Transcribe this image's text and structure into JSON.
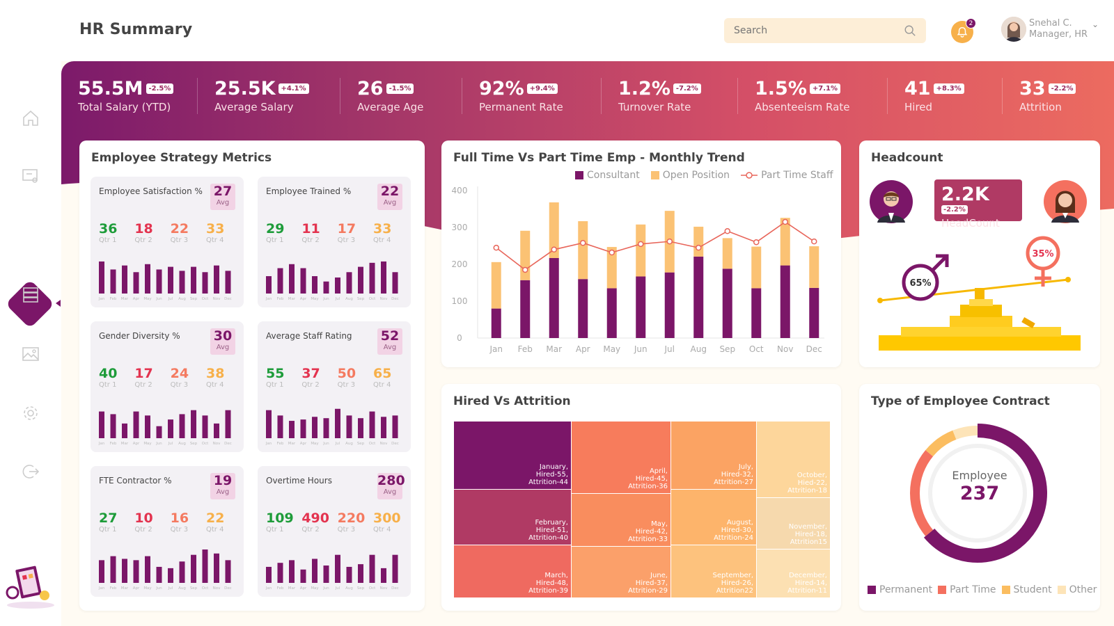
{
  "header": {
    "title": "HR Summary",
    "search_placeholder": "Search",
    "notifications": "2",
    "user_name": "Snehal C.",
    "user_role": "Manager, HR"
  },
  "kpis": [
    {
      "value": "55.5M",
      "delta": "-2.5%",
      "label": "Total Salary (YTD)"
    },
    {
      "value": "25.5K",
      "delta": "+4.1%",
      "label": "Average Salary"
    },
    {
      "value": "26",
      "delta": "-1.5%",
      "label": "Average Age"
    },
    {
      "value": "92%",
      "delta": "+9.4%",
      "label": "Permanent Rate"
    },
    {
      "value": "1.2%",
      "delta": "-7.2%",
      "label": "Turnover Rate"
    },
    {
      "value": "1.5%",
      "delta": "+7.1%",
      "label": "Absenteeism Rate"
    },
    {
      "value": "41",
      "delta": "+8.3%",
      "label": "Hired"
    },
    {
      "value": "33",
      "delta": "-2.2%",
      "label": "Attrition"
    }
  ],
  "strategy": {
    "title": "Employee Strategy Metrics",
    "months": [
      "Jan",
      "Feb",
      "Mar",
      "Apr",
      "May",
      "Jun",
      "Jul",
      "Aug",
      "Sep",
      "Oct",
      "Nov",
      "Dec"
    ],
    "metrics": [
      {
        "title": "Employee Satisfaction %",
        "avg": "27",
        "avg_label": "Avg",
        "q": [
          "36",
          "18",
          "22",
          "33"
        ],
        "ql": [
          "Qtr 1",
          "Qtr 2",
          "Qtr 3",
          "Qtr 4"
        ],
        "bars": [
          48,
          36,
          42,
          32,
          44,
          36,
          40,
          34,
          40,
          32,
          42,
          34
        ]
      },
      {
        "title": "Employee Trained %",
        "avg": "22",
        "avg_label": "Avg",
        "q": [
          "29",
          "11",
          "17",
          "33"
        ],
        "ql": [
          "Qtr 1",
          "Qtr 2",
          "Qtr 3",
          "Qtr 4"
        ],
        "bars": [
          26,
          38,
          44,
          38,
          26,
          18,
          24,
          32,
          40,
          46,
          48,
          32
        ]
      },
      {
        "title": "Gender Diversity %",
        "avg": "30",
        "avg_label": "Avg",
        "q": [
          "40",
          "17",
          "24",
          "38"
        ],
        "ql": [
          "Qtr 1",
          "Qtr 2",
          "Qtr 3",
          "Qtr 4"
        ],
        "bars": [
          40,
          36,
          22,
          40,
          34,
          18,
          28,
          36,
          42,
          34,
          22,
          42
        ]
      },
      {
        "title": "Average Staff Rating",
        "avg": "52",
        "avg_label": "Avg",
        "q": [
          "55",
          "37",
          "50",
          "65"
        ],
        "ql": [
          "Qtr 1",
          "Qtr 2",
          "Qtr 3",
          "Qtr 4"
        ],
        "bars": [
          42,
          34,
          26,
          28,
          32,
          30,
          44,
          34,
          30,
          40,
          32,
          34
        ]
      },
      {
        "title": "FTE Contractor %",
        "avg": "19",
        "avg_label": "Avg",
        "q": [
          "27",
          "10",
          "16",
          "22"
        ],
        "ql": [
          "Qtr 1",
          "Qtr 2",
          "Qtr 3",
          "Qtr 4"
        ],
        "bars": [
          34,
          40,
          36,
          34,
          40,
          24,
          22,
          32,
          42,
          50,
          44,
          34
        ]
      },
      {
        "title": "Overtime Hours",
        "avg": "280",
        "avg_label": "Avg",
        "q": [
          "109",
          "490",
          "220",
          "300"
        ],
        "ql": [
          "Qtr 1",
          "Qtr 2",
          "Qtr 3",
          "Qtr 4"
        ],
        "bars": [
          24,
          30,
          34,
          20,
          36,
          26,
          42,
          24,
          28,
          42,
          22,
          42
        ]
      }
    ]
  },
  "trend": {
    "title": "Full Time Vs Part Time Emp - Monthly Trend",
    "legend": [
      "Consultant",
      "Open Position",
      "Part Time Staff"
    ],
    "colors": {
      "consultant": "#7b1668",
      "open": "#fbc274",
      "part": "#e8655a"
    },
    "chart_data": {
      "type": "bar",
      "categories": [
        "Jan",
        "Feb",
        "Mar",
        "Apr",
        "May",
        "Jun",
        "Jul",
        "Aug",
        "Sep",
        "Oct",
        "Nov",
        "Dec"
      ],
      "ylim": [
        0,
        400
      ],
      "yticks": [
        "0",
        "100",
        "200",
        "300",
        "400"
      ],
      "series": [
        {
          "name": "Consultant",
          "values": [
            80,
            157,
            217,
            160,
            135,
            167,
            178,
            221,
            188,
            135,
            197,
            136
          ]
        },
        {
          "name": "Open Position",
          "values": [
            126,
            134,
            151,
            157,
            112,
            141,
            167,
            81,
            83,
            113,
            129,
            113
          ]
        },
        {
          "name": "Part Time Staff",
          "values": [
            245,
            185,
            240,
            258,
            232,
            255,
            262,
            245,
            290,
            260,
            315,
            262
          ]
        }
      ]
    }
  },
  "headcount": {
    "title": "Headcount",
    "value": "2.2K",
    "delta": "-2.2%",
    "label": "HeadCount",
    "male_pct": "65%",
    "female_pct": "35%"
  },
  "hired": {
    "title": "Hired Vs Attrition",
    "cells": [
      {
        "t": "January,",
        "h": "Hired-55,",
        "a": "Attrition-44",
        "c": "#7b1668"
      },
      {
        "t": "February,",
        "h": "Hired-51,",
        "a": "Attrition-40",
        "c": "#b03a64"
      },
      {
        "t": "March,",
        "h": "Hired-48,",
        "a": "Attrition-39",
        "c": "#ef6a60"
      },
      {
        "t": "April,",
        "h": "Hired-45,",
        "a": "Attrition-36",
        "c": "#f77c5c"
      },
      {
        "t": "May,",
        "h": "Hired-42,",
        "a": "Attrition-33",
        "c": "#f98d5e"
      },
      {
        "t": "June,",
        "h": "Hired-37,",
        "a": "Attrition-29",
        "c": "#fba06a"
      },
      {
        "t": "July,",
        "h": "Hired-32,",
        "a": "Attrition-27",
        "c": "#fba363"
      },
      {
        "t": "August,",
        "h": "Hired-30,",
        "a": "Attrition-24",
        "c": "#fdb46b"
      },
      {
        "t": "September,",
        "h": "Hired-26,",
        "a": "Attrition22",
        "c": "#fdc27d"
      },
      {
        "t": "October,",
        "h": "Hied-22,",
        "a": "Attrition-18",
        "c": "#fdd69b"
      },
      {
        "t": "November,",
        "h": "Hired-18,",
        "a": "Attrition15",
        "c": "#f6d9ad"
      },
      {
        "t": "December,",
        "h": "Hired-14,",
        "a": "Attrition-11",
        "c": "#fce0b2"
      }
    ]
  },
  "contract": {
    "title": "Type of Employee Contract",
    "center_label": "Employee",
    "center_value": "237",
    "legend": [
      "Permanent",
      "Part Time",
      "Student",
      "Other"
    ],
    "colors": [
      "#7b1668",
      "#f4705f",
      "#fbbd60",
      "#fde4b8"
    ],
    "chart_data": {
      "type": "pie",
      "labels": [
        "Permanent",
        "Part Time",
        "Student",
        "Other"
      ],
      "values": [
        64,
        22,
        8,
        6
      ]
    }
  }
}
